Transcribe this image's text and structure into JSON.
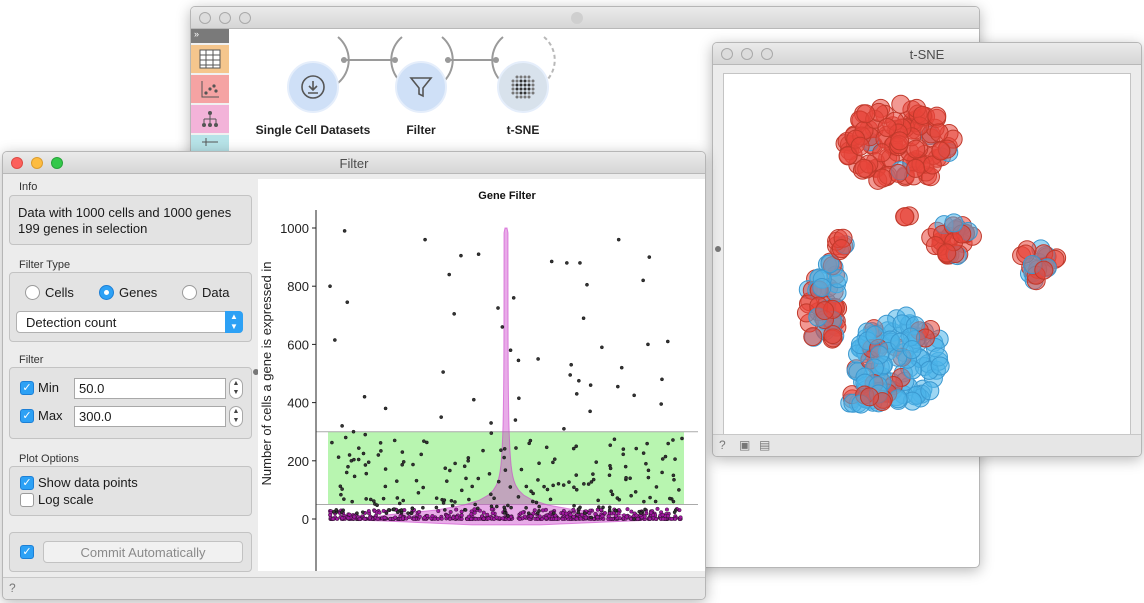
{
  "canvas": {
    "widgets": [
      {
        "label": "Single Cell Datasets",
        "icon": "download-icon"
      },
      {
        "label": "Filter",
        "icon": "funnel-icon"
      },
      {
        "label": "t-SNE",
        "icon": "tsne-icon"
      }
    ]
  },
  "tsne_window": {
    "title": "t-SNE"
  },
  "filter_window": {
    "title": "Filter",
    "info": {
      "title": "Info",
      "line1": "Data with 1000 cells and 1000 genes",
      "line2": "199 genes in selection"
    },
    "filter_type": {
      "title": "Filter Type",
      "options": [
        "Cells",
        "Genes",
        "Data"
      ],
      "selected": "Genes",
      "dropdown": "Detection count"
    },
    "filter": {
      "title": "Filter",
      "min_label": "Min",
      "min_value": "50.0",
      "max_label": "Max",
      "max_value": "300.0"
    },
    "plot_options": {
      "title": "Plot Options",
      "show_points": "Show data points",
      "log_scale": "Log scale"
    },
    "commit_label": "Commit Automatically",
    "help_glyph": "?"
  },
  "chart_data": {
    "type": "scatter",
    "title": "Gene Filter",
    "ylabel": "Number of cells a gene is expressed in",
    "xlabel": "",
    "ylim": [
      0,
      1000
    ],
    "yticks": [
      0,
      200,
      400,
      600,
      800,
      1000
    ],
    "selection_range": [
      50,
      300
    ],
    "selection_color": "#b8f5b0",
    "violin_color": "#cc44cc",
    "points_sample": [
      960,
      990,
      960,
      910,
      905,
      900,
      885,
      880,
      880,
      840,
      820,
      805,
      800,
      760,
      745,
      725,
      705,
      690,
      660,
      615,
      610,
      600,
      590,
      580,
      550,
      545,
      530,
      520,
      505,
      495,
      480,
      475,
      460,
      455,
      430,
      425,
      420,
      415,
      410,
      395,
      380,
      370,
      350,
      340,
      330,
      320,
      310,
      300,
      295,
      290,
      280,
      270,
      260,
      250,
      240,
      230,
      220,
      210,
      200,
      190,
      180,
      170,
      160,
      150,
      140,
      130,
      120,
      110,
      100,
      90,
      80,
      70,
      60,
      50,
      40,
      30,
      20,
      10,
      5,
      0
    ]
  },
  "tsne_data": {
    "type": "scatter",
    "colors": {
      "red": "#e8463b",
      "blue": "#4cb4ea"
    }
  }
}
